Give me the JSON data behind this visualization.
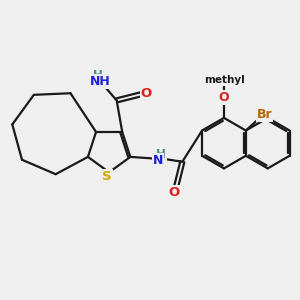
{
  "bg": "#efefef",
  "bond_color": "#1a1a1a",
  "bond_lw": 1.6,
  "colors": {
    "C": "#1a1a1a",
    "H": "#4a8a8a",
    "N": "#2020dd",
    "O": "#dd2020",
    "S": "#ccaa00",
    "Br": "#bb6600"
  },
  "dbl_off": 0.055
}
